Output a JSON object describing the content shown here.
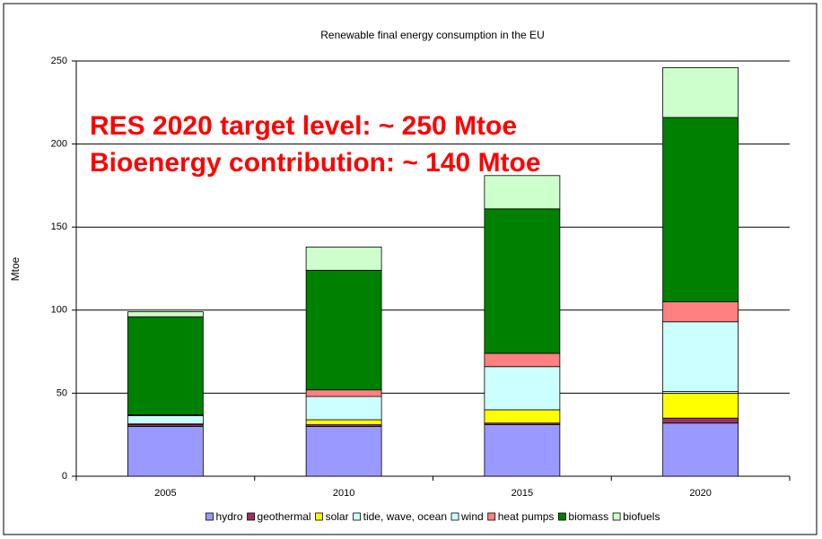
{
  "chart_data": {
    "type": "stacked_bar",
    "title": "Renewable final energy consumption in the EU",
    "ylabel": "Mtoe",
    "annotations": [
      "RES 2020 target level: ~ 250 Mtoe",
      "Bioenergy contribution: ~ 140 Mtoe"
    ],
    "categories": [
      "2005",
      "2010",
      "2015",
      "2020"
    ],
    "series": [
      {
        "name": "hydro",
        "color": "#9999ff",
        "values": [
          30,
          30,
          31,
          32
        ]
      },
      {
        "name": "geothermal",
        "color": "#993366",
        "values": [
          1,
          1,
          1,
          3
        ]
      },
      {
        "name": "solar",
        "color": "#ffff00",
        "values": [
          0.5,
          3,
          8,
          15
        ]
      },
      {
        "name": "tide, wave, ocean",
        "color": "#ccffff",
        "values": [
          0,
          0,
          0,
          1
        ]
      },
      {
        "name": "wind",
        "color": "#ccffff",
        "values": [
          5,
          14,
          26,
          42
        ]
      },
      {
        "name": "heat pumps",
        "color": "#ff8080",
        "values": [
          0.5,
          4,
          8,
          12
        ]
      },
      {
        "name": "biomass",
        "color": "#008000",
        "values": [
          59,
          72,
          87,
          111
        ]
      },
      {
        "name": "biofuels",
        "color": "#ccffcc",
        "values": [
          3,
          14,
          20,
          30
        ]
      }
    ],
    "ylim": [
      0,
      250
    ],
    "yticks": [
      0,
      50,
      100,
      150,
      200,
      250
    ],
    "grid": true,
    "legend": "bottom"
  }
}
